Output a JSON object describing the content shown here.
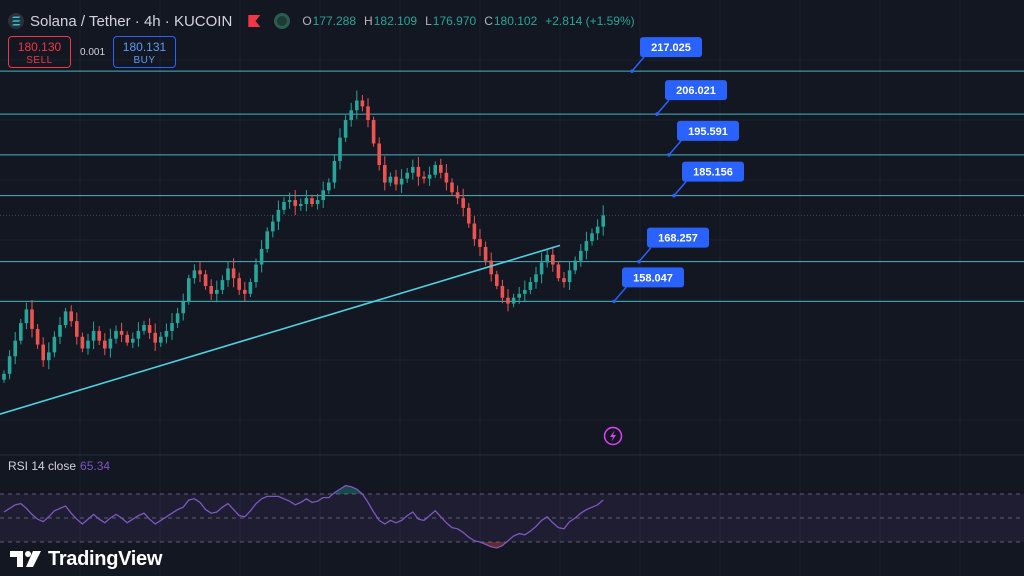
{
  "header": {
    "title": "Solana / Tether · 4h · KUCOIN",
    "ohlc": [
      {
        "key": "O",
        "value": "177.288"
      },
      {
        "key": "H",
        "value": "182.109"
      },
      {
        "key": "L",
        "value": "176.970"
      },
      {
        "key": "C",
        "value": "180.102"
      }
    ],
    "change": "+2.814 (+1.59%)"
  },
  "trade": {
    "sell_price": "180.130",
    "sell_label": "SELL",
    "spread": "0.001",
    "buy_price": "180.131",
    "buy_label": "BUY"
  },
  "rsi": {
    "label": "RSI 14 close",
    "value": "65.34"
  },
  "brand": {
    "name": "TradingView"
  },
  "colors": {
    "background": "#131722",
    "up": "#26a69a",
    "down": "#ef5350",
    "level_line": "#4dd0e1",
    "badge": "#2962ff",
    "rsi_line": "#7e57c2"
  },
  "chart_data": {
    "type": "candlestick",
    "symbol": "Solana / Tether",
    "interval": "4h",
    "exchange": "KUCOIN",
    "ylim": [
      120,
      225
    ],
    "current_price": 180.102,
    "levels": [
      {
        "price": 217.025,
        "label": "217.025"
      },
      {
        "price": 206.021,
        "label": "206.021"
      },
      {
        "price": 195.591,
        "label": "195.591"
      },
      {
        "price": 185.156,
        "label": "185.156"
      },
      {
        "price": 168.257,
        "label": "168.257"
      },
      {
        "price": 158.047,
        "label": "158.047"
      }
    ],
    "trendline": {
      "start_index": 0,
      "start_price": 129.5,
      "end_index": 140,
      "end_price": 190.0
    },
    "closes": [
      139.5,
      144.0,
      148.0,
      152.5,
      156.0,
      151.0,
      147.0,
      143.0,
      145.0,
      149.0,
      152.0,
      155.5,
      153.0,
      149.0,
      146.0,
      148.0,
      150.5,
      148.0,
      146.0,
      148.5,
      150.5,
      149.5,
      147.5,
      148.5,
      150.5,
      152.0,
      150.0,
      147.5,
      149.0,
      150.5,
      152.5,
      155.0,
      158.0,
      164.0,
      166.0,
      165.0,
      162.0,
      160.0,
      161.0,
      163.5,
      166.5,
      164.0,
      161.0,
      160.0,
      163.0,
      167.5,
      171.5,
      176.0,
      178.5,
      181.5,
      183.5,
      184.0,
      182.5,
      183.0,
      184.5,
      183.0,
      184.0,
      186.5,
      188.5,
      194.0,
      200.0,
      204.5,
      207.0,
      209.5,
      208.0,
      204.5,
      198.5,
      193.0,
      188.5,
      190.0,
      188.0,
      189.5,
      191.0,
      192.5,
      190.0,
      189.5,
      190.5,
      193.0,
      191.0,
      188.5,
      186.0,
      184.5,
      182.0,
      178.0,
      174.0,
      172.0,
      168.5,
      165.0,
      162.0,
      159.0,
      157.5,
      159.0,
      160.0,
      161.0,
      163.0,
      165.0,
      168.0,
      170.0,
      167.5,
      164.0,
      163.0,
      166.0,
      168.5,
      171.0,
      173.5,
      175.5,
      177.2,
      180.1
    ],
    "rsi_values": [
      55,
      58,
      61,
      62,
      58,
      53,
      49,
      47,
      51,
      56,
      58,
      60,
      54,
      49,
      45,
      49,
      53,
      49,
      46,
      50,
      53,
      50,
      46,
      49,
      52,
      54,
      49,
      45,
      48,
      51,
      54,
      57,
      59,
      65,
      66,
      63,
      57,
      54,
      55,
      59,
      62,
      57,
      52,
      51,
      56,
      62,
      66,
      68,
      68,
      68,
      66,
      64,
      61,
      63,
      66,
      63,
      64,
      67,
      67,
      71,
      74,
      77,
      76,
      74,
      70,
      63,
      55,
      48,
      45,
      48,
      46,
      48,
      52,
      55,
      49,
      48,
      52,
      56,
      51,
      46,
      42,
      41,
      38,
      34,
      31,
      30,
      28,
      26,
      25,
      27,
      31,
      35,
      37,
      36,
      39,
      43,
      48,
      51,
      46,
      42,
      41,
      47,
      50,
      54,
      57,
      59,
      61,
      65
    ],
    "rsi_bands": [
      70,
      50,
      30
    ]
  }
}
